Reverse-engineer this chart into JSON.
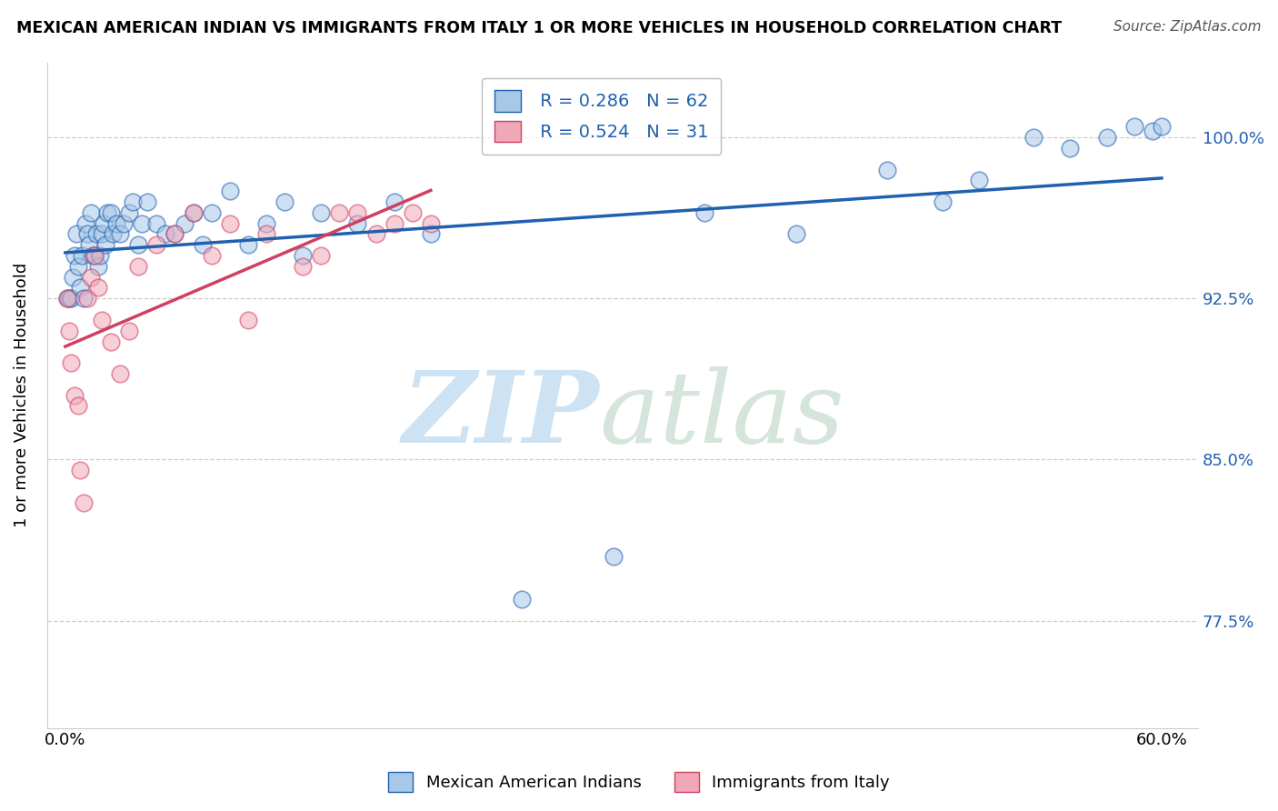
{
  "title": "MEXICAN AMERICAN INDIAN VS IMMIGRANTS FROM ITALY 1 OR MORE VEHICLES IN HOUSEHOLD CORRELATION CHART",
  "source": "Source: ZipAtlas.com",
  "ylabel": "1 or more Vehicles in Household",
  "xlim": [
    -1.0,
    62.0
  ],
  "ylim": [
    72.5,
    103.5
  ],
  "x_tick_positions": [
    0,
    10,
    20,
    30,
    40,
    50,
    60
  ],
  "x_tick_labels": [
    "0.0%",
    "",
    "",
    "",
    "",
    "",
    "60.0%"
  ],
  "y_tick_labels": [
    "77.5%",
    "85.0%",
    "92.5%",
    "100.0%"
  ],
  "y_tick_values": [
    77.5,
    85.0,
    92.5,
    100.0
  ],
  "legend_label_blue": "Mexican American Indians",
  "legend_label_pink": "Immigrants from Italy",
  "R_blue": 0.286,
  "N_blue": 62,
  "R_pink": 0.524,
  "N_pink": 31,
  "blue_color": "#a8c8e8",
  "pink_color": "#f0a8b8",
  "line_blue": "#2060b0",
  "line_pink": "#d04060",
  "blue_x": [
    0.1,
    0.2,
    0.3,
    0.4,
    0.5,
    0.6,
    0.7,
    0.8,
    0.9,
    1.0,
    1.1,
    1.2,
    1.3,
    1.4,
    1.5,
    1.6,
    1.7,
    1.8,
    1.9,
    2.0,
    2.1,
    2.2,
    2.3,
    2.5,
    2.6,
    2.8,
    3.0,
    3.2,
    3.5,
    3.7,
    4.0,
    4.2,
    4.5,
    5.0,
    5.5,
    6.0,
    6.5,
    7.0,
    7.5,
    8.0,
    9.0,
    10.0,
    11.0,
    12.0,
    13.0,
    14.0,
    16.0,
    18.0,
    20.0,
    25.0,
    30.0,
    35.0,
    40.0,
    45.0,
    48.0,
    50.0,
    53.0,
    55.0,
    57.0,
    58.5,
    59.5,
    60.0
  ],
  "blue_y": [
    92.5,
    92.5,
    92.5,
    93.5,
    94.5,
    95.5,
    94.0,
    93.0,
    94.5,
    92.5,
    96.0,
    95.5,
    95.0,
    96.5,
    94.5,
    94.5,
    95.5,
    94.0,
    94.5,
    95.5,
    96.0,
    95.0,
    96.5,
    96.5,
    95.5,
    96.0,
    95.5,
    96.0,
    96.5,
    97.0,
    95.0,
    96.0,
    97.0,
    96.0,
    95.5,
    95.5,
    96.0,
    96.5,
    95.0,
    96.5,
    97.5,
    95.0,
    96.0,
    97.0,
    94.5,
    96.5,
    96.0,
    97.0,
    95.5,
    78.5,
    80.5,
    96.5,
    95.5,
    98.5,
    97.0,
    98.0,
    100.0,
    99.5,
    100.0,
    100.5,
    100.3,
    100.5
  ],
  "pink_x": [
    0.1,
    0.2,
    0.3,
    0.5,
    0.7,
    0.8,
    1.0,
    1.2,
    1.4,
    1.6,
    1.8,
    2.0,
    2.5,
    3.0,
    3.5,
    4.0,
    5.0,
    6.0,
    7.0,
    8.0,
    9.0,
    10.0,
    11.0,
    13.0,
    14.0,
    15.0,
    16.0,
    17.0,
    18.0,
    19.0,
    20.0
  ],
  "pink_y": [
    92.5,
    91.0,
    89.5,
    88.0,
    87.5,
    84.5,
    83.0,
    92.5,
    93.5,
    94.5,
    93.0,
    91.5,
    90.5,
    89.0,
    91.0,
    94.0,
    95.0,
    95.5,
    96.5,
    94.5,
    96.0,
    91.5,
    95.5,
    94.0,
    94.5,
    96.5,
    96.5,
    95.5,
    96.0,
    96.5,
    96.0
  ]
}
